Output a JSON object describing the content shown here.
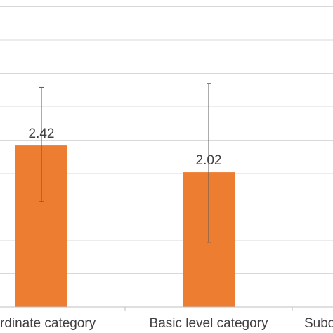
{
  "chart_data": {
    "type": "bar",
    "categories": [
      "Superordinate category",
      "Basic level category",
      "Subordinate category"
    ],
    "category_labels_visible": [
      "rdinate category",
      "Basic level category",
      "Subo"
    ],
    "values": [
      2.42,
      2.02,
      null
    ],
    "value_labels": [
      "2.42",
      "2.02",
      ""
    ],
    "error_bars": [
      {
        "low": 1.58,
        "high": 3.29
      },
      {
        "low": 0.97,
        "high": 3.35
      },
      null
    ],
    "ylim": [
      0,
      4.6
    ],
    "grid": true,
    "colors": {
      "bar": "#ed7d31",
      "grid": "#d9d9d9",
      "axis": "#bfbfbf",
      "error_bar": "#595959",
      "text": "#404040"
    },
    "title": "",
    "xlabel": "",
    "ylabel": ""
  }
}
